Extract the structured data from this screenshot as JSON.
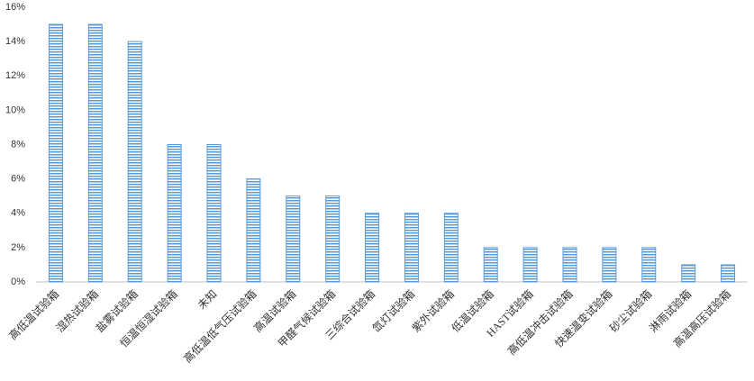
{
  "chart_data": {
    "type": "bar",
    "categories": [
      "高低温试验箱",
      "湿热试验箱",
      "盐雾试验箱",
      "恒温恒湿试验箱",
      "未知",
      "高低温低气压试验箱",
      "高温试验箱",
      "甲醛气候试验箱",
      "三综合试验箱",
      "氙灯试验箱",
      "紫外试验箱",
      "低温试验箱",
      "HAST试验箱",
      "高低温冲击试验箱",
      "快速温变试验箱",
      "砂尘试验箱",
      "淋雨试验箱",
      "高温高压试验箱"
    ],
    "values": [
      15,
      15,
      14,
      8,
      8,
      6,
      5,
      5,
      4,
      4,
      4,
      2,
      2,
      2,
      2,
      2,
      1,
      1
    ],
    "color": "#5b9bd5",
    "ylim": [
      0,
      16
    ],
    "yticks": [
      {
        "value": 0,
        "label": "0%"
      },
      {
        "value": 2,
        "label": "2%"
      },
      {
        "value": 4,
        "label": "4%"
      },
      {
        "value": 6,
        "label": "6%"
      },
      {
        "value": 8,
        "label": "8%"
      },
      {
        "value": 10,
        "label": "10%"
      },
      {
        "value": 12,
        "label": "12%"
      },
      {
        "value": 14,
        "label": "14%"
      },
      {
        "value": 16,
        "label": "16%"
      }
    ],
    "grid": false
  }
}
